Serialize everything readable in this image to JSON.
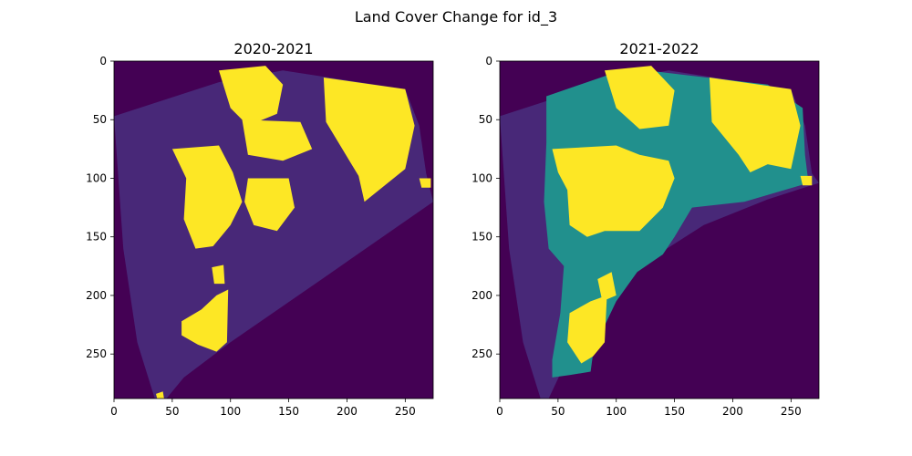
{
  "figure": {
    "title": "Land Cover Change for id_3"
  },
  "colors": {
    "background": "#440154",
    "low": "#482878",
    "mid": "#21908d",
    "high": "#fde725"
  },
  "chart_data": [
    {
      "type": "heatmap",
      "title": "2020-2021",
      "xlim": [
        0,
        274
      ],
      "ylim": [
        288,
        0
      ],
      "x_ticks": [
        0,
        50,
        100,
        150,
        200,
        250
      ],
      "y_ticks": [
        0,
        50,
        100,
        150,
        200,
        250
      ],
      "classes_present": [
        "background",
        "low",
        "high"
      ],
      "regions": [
        {
          "class": "low",
          "polygon": [
            [
              0,
              47
            ],
            [
              90,
              18
            ],
            [
              145,
              8
            ],
            [
              250,
              24
            ],
            [
              262,
              55
            ],
            [
              268,
              96
            ],
            [
              274,
              120
            ],
            [
              180,
              185
            ],
            [
              100,
              240
            ],
            [
              60,
              270
            ],
            [
              45,
              288
            ],
            [
              35,
              288
            ],
            [
              20,
              240
            ],
            [
              8,
              160
            ]
          ]
        },
        {
          "class": "high",
          "polygon": [
            [
              180,
              14
            ],
            [
              250,
              24
            ],
            [
              258,
              55
            ],
            [
              250,
              92
            ],
            [
              215,
              120
            ],
            [
              210,
              98
            ],
            [
              182,
              52
            ]
          ]
        },
        {
          "class": "high",
          "polygon": [
            [
              90,
              8
            ],
            [
              130,
              4
            ],
            [
              145,
              20
            ],
            [
              140,
              45
            ],
            [
              115,
              55
            ],
            [
              100,
              40
            ]
          ]
        },
        {
          "class": "high",
          "polygon": [
            [
              110,
              50
            ],
            [
              160,
              52
            ],
            [
              170,
              75
            ],
            [
              145,
              85
            ],
            [
              115,
              80
            ]
          ]
        },
        {
          "class": "high",
          "polygon": [
            [
              50,
              75
            ],
            [
              90,
              72
            ],
            [
              102,
              95
            ],
            [
              110,
              120
            ],
            [
              100,
              140
            ],
            [
              85,
              158
            ],
            [
              70,
              160
            ],
            [
              60,
              135
            ],
            [
              62,
              100
            ]
          ]
        },
        {
          "class": "high",
          "polygon": [
            [
              115,
              100
            ],
            [
              150,
              100
            ],
            [
              155,
              125
            ],
            [
              140,
              145
            ],
            [
              120,
              140
            ],
            [
              112,
              120
            ]
          ]
        },
        {
          "class": "high",
          "polygon": [
            [
              58,
              222
            ],
            [
              75,
              212
            ],
            [
              88,
              200
            ],
            [
              98,
              195
            ],
            [
              97,
              240
            ],
            [
              88,
              248
            ],
            [
              72,
              242
            ],
            [
              58,
              234
            ]
          ]
        },
        {
          "class": "high",
          "polygon": [
            [
              84,
              176
            ],
            [
              94,
              174
            ],
            [
              95,
              190
            ],
            [
              86,
              190
            ]
          ]
        },
        {
          "class": "high",
          "polygon": [
            [
              262,
              100
            ],
            [
              272,
              100
            ],
            [
              272,
              108
            ],
            [
              264,
              108
            ]
          ]
        },
        {
          "class": "high",
          "polygon": [
            [
              36,
              284
            ],
            [
              42,
              282
            ],
            [
              43,
              288
            ],
            [
              37,
              288
            ]
          ]
        }
      ]
    },
    {
      "type": "heatmap",
      "title": "2021-2022",
      "xlim": [
        0,
        274
      ],
      "ylim": [
        288,
        0
      ],
      "x_ticks": [
        0,
        50,
        100,
        150,
        200,
        250
      ],
      "y_ticks": [
        0,
        50,
        100,
        150,
        200,
        250
      ],
      "classes_present": [
        "background",
        "low",
        "mid",
        "high"
      ],
      "regions": [
        {
          "class": "low",
          "polygon": [
            [
              0,
              47
            ],
            [
              90,
              18
            ],
            [
              145,
              8
            ],
            [
              250,
              24
            ],
            [
              262,
              55
            ],
            [
              268,
              96
            ],
            [
              274,
              104
            ],
            [
              230,
              118
            ],
            [
              175,
              140
            ],
            [
              120,
              175
            ],
            [
              80,
              210
            ],
            [
              60,
              250
            ],
            [
              42,
              288
            ],
            [
              35,
              288
            ],
            [
              20,
              240
            ],
            [
              8,
              160
            ]
          ]
        },
        {
          "class": "mid",
          "polygon": [
            [
              40,
              30
            ],
            [
              110,
              6
            ],
            [
              160,
              12
            ],
            [
              230,
              20
            ],
            [
              260,
              40
            ],
            [
              262,
              80
            ],
            [
              265,
              104
            ],
            [
              210,
              120
            ],
            [
              165,
              125
            ],
            [
              150,
              150
            ],
            [
              140,
              165
            ],
            [
              118,
              180
            ],
            [
              100,
              205
            ],
            [
              88,
              230
            ],
            [
              80,
              250
            ],
            [
              78,
              265
            ],
            [
              60,
              268
            ],
            [
              45,
              270
            ],
            [
              45,
              255
            ],
            [
              52,
              215
            ],
            [
              55,
              175
            ],
            [
              42,
              160
            ],
            [
              38,
              120
            ],
            [
              40,
              70
            ]
          ]
        },
        {
          "class": "high",
          "polygon": [
            [
              180,
              14
            ],
            [
              250,
              24
            ],
            [
              258,
              55
            ],
            [
              250,
              92
            ],
            [
              230,
              88
            ],
            [
              215,
              95
            ],
            [
              205,
              80
            ],
            [
              182,
              52
            ]
          ]
        },
        {
          "class": "high",
          "polygon": [
            [
              90,
              8
            ],
            [
              130,
              4
            ],
            [
              150,
              25
            ],
            [
              145,
              55
            ],
            [
              120,
              58
            ],
            [
              100,
              40
            ]
          ]
        },
        {
          "class": "high",
          "polygon": [
            [
              45,
              75
            ],
            [
              100,
              72
            ],
            [
              120,
              80
            ],
            [
              145,
              85
            ],
            [
              150,
              100
            ],
            [
              140,
              125
            ],
            [
              120,
              145
            ],
            [
              90,
              145
            ],
            [
              75,
              150
            ],
            [
              60,
              140
            ],
            [
              58,
              110
            ],
            [
              50,
              95
            ]
          ]
        },
        {
          "class": "high",
          "polygon": [
            [
              60,
              215
            ],
            [
              78,
              205
            ],
            [
              92,
              200
            ],
            [
              90,
              240
            ],
            [
              80,
              252
            ],
            [
              70,
              258
            ],
            [
              58,
              240
            ]
          ]
        },
        {
          "class": "high",
          "polygon": [
            [
              84,
              186
            ],
            [
              96,
              180
            ],
            [
              100,
              200
            ],
            [
              88,
              205
            ]
          ]
        },
        {
          "class": "high",
          "polygon": [
            [
              258,
              98
            ],
            [
              268,
              98
            ],
            [
              268,
              106
            ],
            [
              260,
              106
            ]
          ]
        }
      ]
    }
  ]
}
